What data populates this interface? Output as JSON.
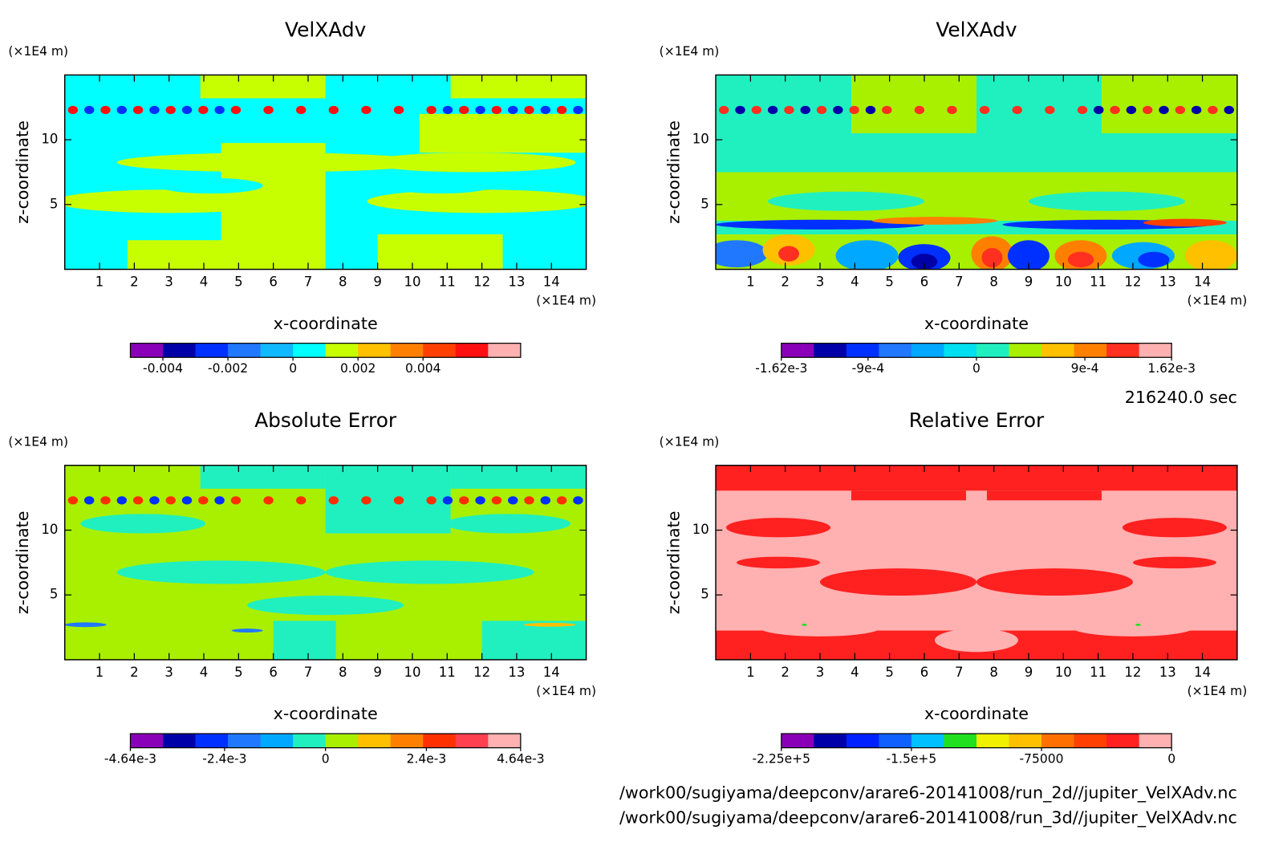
{
  "chart_data": [
    {
      "type": "contour",
      "title": "VelXAdv",
      "xlabel": "x-coordinate",
      "ylabel": "z-coordinate",
      "x_unit": "(×1E4 m)",
      "y_unit": "(×1E4 m)",
      "xlim": [
        0,
        15
      ],
      "ylim": [
        0,
        15
      ],
      "xticks": [
        1,
        2,
        3,
        4,
        5,
        6,
        7,
        8,
        9,
        10,
        11,
        12,
        13,
        14
      ],
      "yticks": [
        5,
        10
      ],
      "colorbar": {
        "clim": [
          -0.005,
          0.007
        ],
        "colors": [
          "#8a00b8",
          "#0000a8",
          "#0030ff",
          "#2078ff",
          "#10b8ff",
          "#00ffff",
          "#c8ff00",
          "#ffc000",
          "#ff8000",
          "#ff4000",
          "#ff1010",
          "#ffb0b0"
        ],
        "ticks": [
          -0.004,
          -0.002,
          0,
          0.002,
          0.004
        ]
      }
    },
    {
      "type": "contour",
      "title": "VelXAdv",
      "xlabel": "x-coordinate",
      "ylabel": "z-coordinate",
      "x_unit": "(×1E4 m)",
      "y_unit": "(×1E4 m)",
      "xlim": [
        0,
        15
      ],
      "ylim": [
        0,
        15
      ],
      "xticks": [
        1,
        2,
        3,
        4,
        5,
        6,
        7,
        8,
        9,
        10,
        11,
        12,
        13,
        14
      ],
      "yticks": [
        5,
        10
      ],
      "colorbar": {
        "clim": [
          -0.00162,
          0.00162
        ],
        "colors": [
          "#8a00b8",
          "#0000a8",
          "#0030ff",
          "#2078ff",
          "#00a8ff",
          "#00e0f0",
          "#20f0c0",
          "#a8f000",
          "#ffc000",
          "#ff8000",
          "#ff3020",
          "#ffb0b0"
        ],
        "ticks": [
          {
            "value": -0.00162,
            "label": "-1.62e-3"
          },
          {
            "value": -0.0009,
            "label": "-9e-4"
          },
          0,
          {
            "value": 0.0009,
            "label": "9e-4"
          },
          {
            "value": 0.00162,
            "label": "1.62e-3"
          }
        ]
      }
    },
    {
      "type": "contour",
      "title": "Absolute Error",
      "xlabel": "x-coordinate",
      "ylabel": "z-coordinate",
      "x_unit": "(×1E4 m)",
      "y_unit": "(×1E4 m)",
      "xlim": [
        0,
        15
      ],
      "ylim": [
        0,
        15
      ],
      "xticks": [
        1,
        2,
        3,
        4,
        5,
        6,
        7,
        8,
        9,
        10,
        11,
        12,
        13,
        14
      ],
      "yticks": [
        5,
        10
      ],
      "colorbar": {
        "clim": [
          -0.00464,
          0.00464
        ],
        "colors": [
          "#8a00b8",
          "#0000a8",
          "#0030ff",
          "#2078ff",
          "#00a8ff",
          "#20f0c0",
          "#a8f000",
          "#ffc000",
          "#ff8000",
          "#ff3000",
          "#ff4050",
          "#ffb0b0"
        ],
        "ticks": [
          {
            "value": -0.00464,
            "label": "-4.64e-3"
          },
          {
            "value": -0.0024,
            "label": "-2.4e-3"
          },
          0,
          {
            "value": 0.0024,
            "label": "2.4e-3"
          },
          {
            "value": 0.00464,
            "label": "4.64e-3"
          }
        ]
      }
    },
    {
      "type": "contour",
      "title": "Relative Error",
      "xlabel": "x-coordinate",
      "ylabel": "z-coordinate",
      "x_unit": "(×1E4 m)",
      "y_unit": "(×1E4 m)",
      "xlim": [
        0,
        15
      ],
      "ylim": [
        0,
        15
      ],
      "xticks": [
        1,
        2,
        3,
        4,
        5,
        6,
        7,
        8,
        9,
        10,
        11,
        12,
        13,
        14
      ],
      "yticks": [
        5,
        10
      ],
      "colorbar": {
        "clim": [
          -225000,
          0
        ],
        "colors": [
          "#8a00b8",
          "#0000a8",
          "#0020ff",
          "#1060ff",
          "#00c0ff",
          "#20e020",
          "#f0f000",
          "#ffc000",
          "#ff7000",
          "#ff4000",
          "#ff2020",
          "#ffb0b0"
        ],
        "ticks": [
          {
            "value": -225000,
            "label": "-2.25e+5"
          },
          {
            "value": -150000,
            "label": "-1.5e+5"
          },
          -75000,
          0
        ]
      }
    }
  ],
  "time": "216240.0 sec",
  "files": [
    "/work00/sugiyama/deepconv/arare6-20141008/run_2d//jupiter_VelXAdv.nc",
    "/work00/sugiyama/deepconv/arare6-20141008/run_3d//jupiter_VelXAdv.nc"
  ]
}
